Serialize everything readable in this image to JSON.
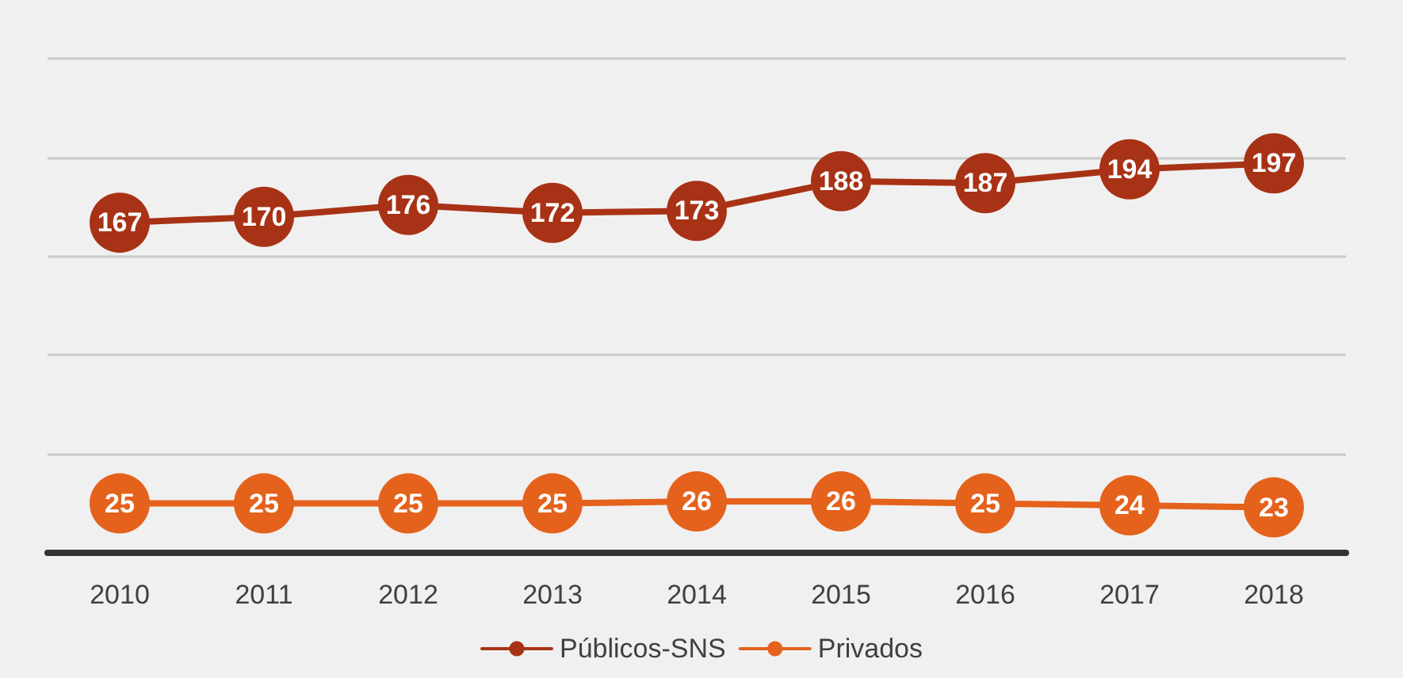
{
  "chart_data": {
    "type": "line",
    "categories": [
      "2010",
      "2011",
      "2012",
      "2013",
      "2014",
      "2015",
      "2016",
      "2017",
      "2018"
    ],
    "series": [
      {
        "name": "Públicos-SNS",
        "color": "#a83215",
        "values": [
          167,
          170,
          176,
          172,
          173,
          188,
          187,
          194,
          197
        ]
      },
      {
        "name": "Privados",
        "color": "#e4621c",
        "values": [
          25,
          25,
          25,
          25,
          26,
          26,
          25,
          24,
          23
        ]
      }
    ],
    "ylim": [
      0,
      250
    ],
    "yticks": [
      {
        "value": 0,
        "label": null
      },
      {
        "value": 50,
        "label": null
      },
      {
        "value": 100,
        "label": null
      },
      {
        "value": 150,
        "label": null
      },
      {
        "value": 200,
        "label": null
      },
      {
        "value": 250,
        "label": null
      }
    ],
    "tick_labels": "x",
    "grid": "y",
    "legend": "bottom",
    "data_labels": true,
    "marker": "circle",
    "line_style": "solid"
  }
}
